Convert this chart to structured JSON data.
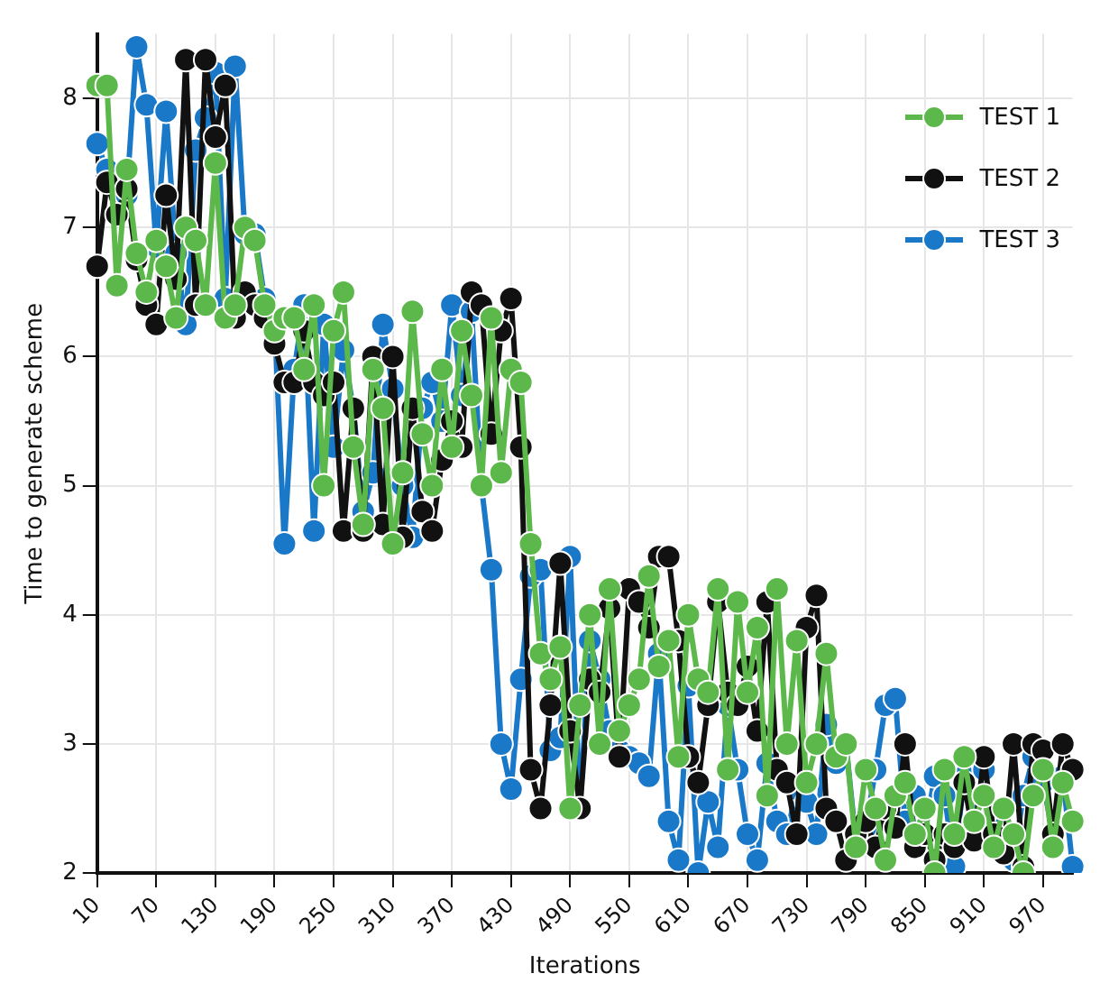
{
  "chart_data": {
    "type": "line",
    "xlabel": "Iterations",
    "ylabel": "Time to generate scheme",
    "categories": [
      "10",
      null,
      null,
      null,
      null,
      null,
      "70",
      null,
      null,
      null,
      null,
      null,
      "130",
      null,
      null,
      null,
      null,
      null,
      "190",
      null,
      null,
      null,
      null,
      null,
      "250",
      null,
      null,
      null,
      null,
      null,
      "310",
      null,
      null,
      null,
      null,
      null,
      "370",
      null,
      null,
      null,
      null,
      null,
      "430",
      null,
      null,
      null,
      null,
      null,
      "490",
      null,
      null,
      null,
      null,
      null,
      "550",
      null,
      null,
      null,
      null,
      null,
      "610",
      null,
      null,
      null,
      null,
      null,
      "670",
      null,
      null,
      null,
      null,
      null,
      "730",
      null,
      null,
      null,
      null,
      null,
      "790",
      null,
      null,
      null,
      null,
      null,
      "850",
      null,
      null,
      null,
      null,
      null,
      "910",
      null,
      null,
      null,
      null,
      null,
      "970",
      null,
      null,
      null
    ],
    "series": [
      {
        "name": "TEST 1",
        "color": "#5cb84a",
        "values": [
          8.1,
          8.1,
          6.55,
          7.45,
          6.8,
          6.5,
          6.9,
          6.7,
          6.3,
          7.0,
          6.9,
          6.4,
          7.5,
          6.3,
          6.4,
          7.0,
          6.9,
          6.4,
          6.2,
          6.3,
          6.3,
          5.9,
          6.4,
          5.0,
          6.2,
          6.5,
          5.3,
          4.7,
          5.9,
          5.6,
          4.55,
          5.1,
          6.35,
          5.4,
          5.0,
          5.9,
          5.3,
          6.2,
          5.7,
          5.0,
          6.3,
          5.1,
          5.9,
          5.8,
          4.55,
          3.7,
          3.5,
          3.75,
          2.5,
          3.3,
          4.0,
          3.0,
          4.2,
          3.1,
          3.3,
          3.5,
          4.3,
          3.6,
          3.8,
          2.9,
          4.0,
          3.5,
          3.4,
          4.2,
          2.8,
          4.1,
          3.4,
          3.9,
          2.6,
          4.2,
          3.0,
          3.8,
          2.7,
          3.0,
          3.7,
          2.9,
          3.0,
          2.2,
          2.8,
          2.5,
          2.1,
          2.6,
          2.7,
          2.3,
          2.5,
          2.0,
          2.8,
          2.3,
          2.9,
          2.4,
          2.6,
          2.2,
          2.5,
          2.3,
          2.0,
          2.6,
          2.8,
          2.2,
          2.7,
          2.4
        ]
      },
      {
        "name": "TEST 2",
        "color": "#111111",
        "values": [
          6.7,
          7.35,
          7.1,
          7.3,
          6.75,
          6.4,
          6.25,
          7.25,
          6.6,
          8.3,
          6.4,
          8.3,
          7.7,
          8.1,
          6.3,
          6.5,
          6.4,
          6.3,
          6.1,
          5.8,
          5.8,
          6.2,
          5.8,
          5.7,
          5.8,
          4.65,
          5.6,
          4.65,
          6.0,
          4.7,
          6.0,
          4.6,
          5.6,
          4.8,
          4.65,
          5.2,
          5.5,
          5.3,
          6.5,
          6.4,
          5.4,
          6.2,
          6.45,
          5.3,
          2.8,
          2.5,
          3.3,
          4.4,
          3.1,
          2.5,
          3.5,
          3.4,
          4.05,
          2.9,
          4.2,
          4.1,
          3.9,
          4.45,
          4.45,
          3.8,
          2.9,
          2.7,
          3.3,
          4.1,
          3.4,
          3.3,
          3.6,
          3.1,
          4.1,
          2.8,
          2.7,
          2.3,
          3.9,
          4.15,
          2.5,
          2.4,
          2.1,
          2.3,
          2.4,
          2.2,
          2.5,
          2.35,
          3.0,
          2.2,
          2.3,
          2.1,
          2.3,
          2.2,
          2.7,
          2.25,
          2.9,
          2.3,
          2.15,
          3.0,
          2.05,
          3.0,
          2.95,
          2.3,
          3.0,
          2.8
        ]
      },
      {
        "name": "TEST 3",
        "color": "#1a78c8",
        "values": [
          7.65,
          7.45,
          7.3,
          7.25,
          8.4,
          7.95,
          6.85,
          7.9,
          6.8,
          6.25,
          7.6,
          7.85,
          8.2,
          6.45,
          8.25,
          6.95,
          6.95,
          6.45,
          6.3,
          4.55,
          5.9,
          6.4,
          4.65,
          6.25,
          5.3,
          6.05,
          5.6,
          4.8,
          5.1,
          6.25,
          5.75,
          5.0,
          4.6,
          5.6,
          5.8,
          5.5,
          6.4,
          5.7,
          6.35,
          5.0,
          4.35,
          3.0,
          2.65,
          3.5,
          4.3,
          4.35,
          2.95,
          3.05,
          4.45,
          2.5,
          3.8,
          3.5,
          3.1,
          2.95,
          2.9,
          2.85,
          2.75,
          3.7,
          2.4,
          2.1,
          3.45,
          2.0,
          2.55,
          2.2,
          3.3,
          2.8,
          2.3,
          2.1,
          2.85,
          2.4,
          2.3,
          2.65,
          2.55,
          2.3,
          3.15,
          2.85,
          3.0,
          2.25,
          2.35,
          2.8,
          3.3,
          3.35,
          2.4,
          2.6,
          2.3,
          2.75,
          2.6,
          2.05,
          2.75,
          2.4,
          2.8,
          2.3,
          2.5,
          2.1,
          2.6,
          2.9,
          2.7,
          2.3,
          2.75,
          2.05
        ]
      }
    ],
    "ylim": [
      2,
      8.5
    ],
    "yticks": [
      2,
      3,
      4,
      5,
      6,
      7,
      8
    ],
    "grid": true,
    "legend": "top right",
    "marker": "circle",
    "line_style": "solid"
  }
}
